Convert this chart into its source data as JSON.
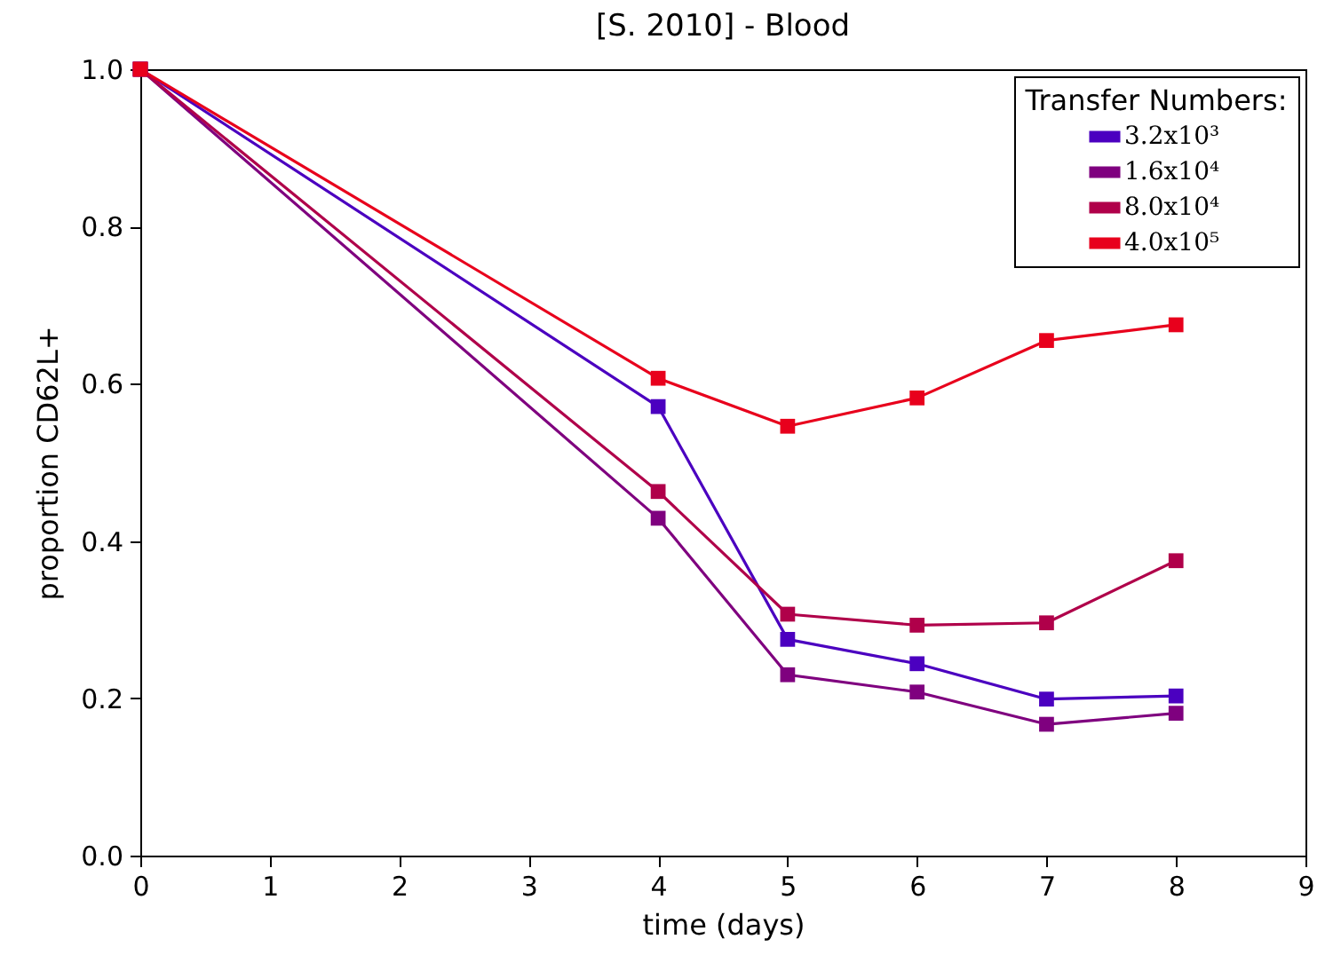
{
  "chart_data": {
    "type": "line",
    "title": "[S. 2010] - Blood",
    "xlabel": "time (days)",
    "ylabel": "proportion CD62L+",
    "legend_title": "Transfer Numbers:",
    "legend": "top right",
    "marker": "square",
    "grid": false,
    "x": [
      0,
      4,
      5,
      6,
      7,
      8
    ],
    "xlim": [
      0,
      9
    ],
    "xticks": [
      0,
      1,
      2,
      3,
      4,
      5,
      6,
      7,
      8,
      9
    ],
    "ylim": [
      0,
      1
    ],
    "yticks": [
      {
        "value": 0,
        "label": "0.0"
      },
      {
        "value": 0.2,
        "label": "0.2"
      },
      {
        "value": 0.4,
        "label": "0.4"
      },
      {
        "value": 0.6,
        "label": "0.6"
      },
      {
        "value": 0.8,
        "label": "0.8"
      },
      {
        "value": 1,
        "label": "1.0"
      }
    ],
    "series": [
      {
        "name": "3.2x10³",
        "color": "#4b00c0",
        "values": [
          1.0,
          0.571,
          0.275,
          0.244,
          0.199,
          0.203
        ]
      },
      {
        "name": "1.6x10⁴",
        "color": "#7f007f",
        "values": [
          1.0,
          0.429,
          0.23,
          0.208,
          0.167,
          0.181
        ]
      },
      {
        "name": "8.0x10⁴",
        "color": "#b0004a",
        "values": [
          1.0,
          0.463,
          0.307,
          0.293,
          0.296,
          0.375
        ]
      },
      {
        "name": "4.0x10⁵",
        "color": "#e8001c",
        "values": [
          1.0,
          0.607,
          0.546,
          0.582,
          0.655,
          0.675
        ]
      }
    ]
  }
}
